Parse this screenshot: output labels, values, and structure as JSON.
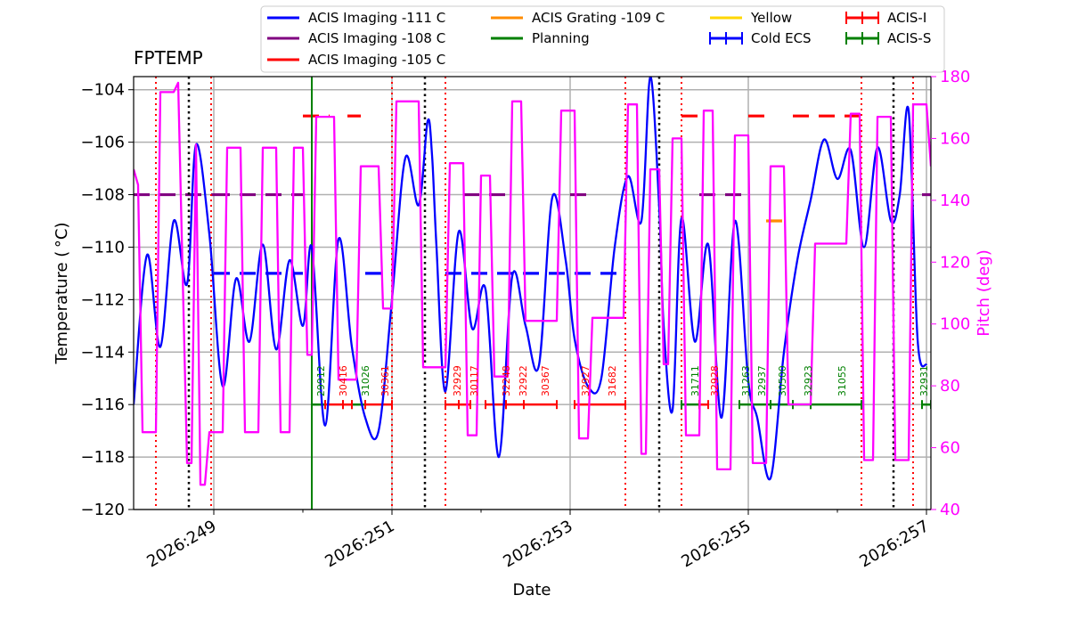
{
  "chart_data": {
    "type": "line",
    "title": "FPTEMP",
    "xlabel": "Date",
    "ylabel": "Temperature ($^\\circ$C)",
    "ylabel_display": "Temperature ( °C)",
    "y2label": "Pitch (deg)",
    "xlim": [
      248.1,
      257.05
    ],
    "ylim": [
      -120,
      -103.5
    ],
    "y2lim": [
      40,
      180
    ],
    "x_ticks": [
      249,
      251,
      253,
      255,
      257
    ],
    "x_tick_labels": [
      "2026:249",
      "2026:251",
      "2026:253",
      "2026:255",
      "2026:257"
    ],
    "y_ticks": [
      -120,
      -118,
      -116,
      -114,
      -112,
      -110,
      -108,
      -106,
      -104
    ],
    "y_tick_labels": [
      "−120",
      "−118",
      "−116",
      "−114",
      "−112",
      "−110",
      "−108",
      "−106",
      "−104"
    ],
    "y2_ticks": [
      40,
      60,
      80,
      100,
      120,
      140,
      160,
      180
    ],
    "y2_tick_labels": [
      "40",
      "60",
      "80",
      "100",
      "120",
      "140",
      "160",
      "180"
    ],
    "grid": true,
    "legend_position": "top",
    "legend": [
      {
        "label": "ACIS Imaging -111 C",
        "color": "#0000ff",
        "kind": "line"
      },
      {
        "label": "ACIS Imaging -108 C",
        "color": "#800080",
        "kind": "line"
      },
      {
        "label": "ACIS Imaging -105 C",
        "color": "#ff0000",
        "kind": "line"
      },
      {
        "label": "ACIS Grating -109 C",
        "color": "#ff8c00",
        "kind": "line"
      },
      {
        "label": "Planning",
        "color": "#008000",
        "kind": "line"
      },
      {
        "label": "Yellow",
        "color": "#ffd700",
        "kind": "line"
      },
      {
        "label": "Cold ECS",
        "color": "#0000ff",
        "kind": "errbar"
      },
      {
        "label": "ACIS-I",
        "color": "#ff0000",
        "kind": "errbar"
      },
      {
        "label": "ACIS-S",
        "color": "#008000",
        "kind": "errbar"
      }
    ],
    "colors": {
      "temperature": "#0000ff",
      "pitch": "#ff00ff",
      "limit_111": "#0000ff",
      "limit_108": "#800080",
      "limit_105": "#ff0000",
      "limit_109": "#ff8c00",
      "planning": "#008000",
      "acis_i": "#ff0000",
      "acis_s": "#008000",
      "dotted_red": "#ff0000",
      "dotted_black": "#000000",
      "grid": "#b0b0b0"
    },
    "series": [
      {
        "name": "FPTEMP",
        "color": "#0000ff",
        "x": [
          248.1,
          248.25,
          248.4,
          248.55,
          248.7,
          248.8,
          248.95,
          249.1,
          249.25,
          249.4,
          249.55,
          249.7,
          249.85,
          250.0,
          250.1,
          250.25,
          250.4,
          250.55,
          250.7,
          250.85,
          251.0,
          251.15,
          251.3,
          251.4,
          251.45,
          251.5,
          251.6,
          251.75,
          251.9,
          252.05,
          252.2,
          252.35,
          252.5,
          252.65,
          252.8,
          252.95,
          253.05,
          253.2,
          253.35,
          253.5,
          253.65,
          253.8,
          253.9,
          254.0,
          254.05,
          254.15,
          254.25,
          254.4,
          254.55,
          254.7,
          254.85,
          255.0,
          255.1,
          255.25,
          255.4,
          255.55,
          255.7,
          255.85,
          256.0,
          256.15,
          256.3,
          256.45,
          256.6,
          256.7,
          256.8,
          256.9,
          257.0
        ],
        "y": [
          -116.0,
          -110.3,
          -113.8,
          -109.0,
          -111.4,
          -106.1,
          -109.5,
          -115.3,
          -111.2,
          -113.6,
          -109.9,
          -113.9,
          -110.5,
          -113.0,
          -110.0,
          -116.8,
          -109.7,
          -113.8,
          -116.5,
          -117.0,
          -112.0,
          -106.6,
          -108.4,
          -105.2,
          -106.5,
          -110.0,
          -115.5,
          -109.4,
          -113.1,
          -111.6,
          -118.0,
          -111.1,
          -113.0,
          -114.5,
          -108.1,
          -110.5,
          -113.5,
          -115.3,
          -115.0,
          -110.0,
          -107.3,
          -109.0,
          -103.5,
          -108.5,
          -113.0,
          -116.2,
          -108.9,
          -113.6,
          -109.9,
          -116.5,
          -109.0,
          -115.1,
          -116.5,
          -118.8,
          -114.0,
          -110.5,
          -108.2,
          -105.9,
          -107.4,
          -106.3,
          -110.0,
          -106.2,
          -109.0,
          -108.0,
          -104.8,
          -113.5,
          -114.5
        ]
      },
      {
        "name": "Pitch",
        "color": "#ff00ff",
        "axis": "right",
        "x": [
          248.1,
          248.15,
          248.2,
          248.35,
          248.4,
          248.55,
          248.6,
          248.7,
          248.75,
          248.8,
          248.85,
          248.9,
          248.95,
          249.1,
          249.15,
          249.3,
          249.35,
          249.5,
          249.55,
          249.7,
          249.75,
          249.85,
          249.9,
          250.0,
          250.05,
          250.1,
          250.15,
          250.35,
          250.4,
          250.6,
          250.65,
          250.85,
          250.9,
          251.0,
          251.05,
          251.3,
          251.35,
          251.6,
          251.65,
          251.8,
          251.85,
          251.95,
          252.0,
          252.1,
          252.15,
          252.3,
          252.35,
          252.45,
          252.5,
          252.85,
          252.9,
          253.05,
          253.1,
          253.2,
          253.25,
          253.6,
          253.65,
          253.75,
          253.8,
          253.85,
          253.9,
          254.0,
          254.05,
          254.1,
          254.15,
          254.25,
          254.3,
          254.45,
          254.5,
          254.6,
          254.65,
          254.8,
          254.85,
          255.0,
          255.05,
          255.2,
          255.25,
          255.4,
          255.45,
          255.5,
          255.55,
          255.7,
          255.75,
          256.1,
          256.15,
          256.25,
          256.3,
          256.4,
          256.45,
          256.6,
          256.65,
          256.8,
          256.85,
          257.0,
          257.05
        ],
        "y": [
          150,
          145,
          65,
          65,
          175,
          175,
          178,
          55,
          55,
          158,
          48,
          48,
          65,
          65,
          157,
          157,
          65,
          65,
          157,
          157,
          65,
          65,
          157,
          157,
          90,
          90,
          167,
          167,
          82,
          82,
          151,
          151,
          105,
          105,
          172,
          172,
          86,
          86,
          152,
          152,
          64,
          64,
          148,
          148,
          83,
          83,
          172,
          172,
          101,
          101,
          169,
          169,
          63,
          63,
          102,
          102,
          171,
          171,
          58,
          58,
          150,
          150,
          87,
          87,
          160,
          160,
          64,
          64,
          169,
          169,
          53,
          53,
          161,
          161,
          55,
          55,
          151,
          151,
          74,
          74,
          74,
          74,
          126,
          126,
          168,
          168,
          56,
          56,
          167,
          167,
          56,
          56,
          171,
          171,
          151
        ]
      }
    ],
    "limits": [
      {
        "name": "ACIS Imaging -111 C",
        "value": -111,
        "color": "#0000ff",
        "segments": [
          [
            249.0,
            250.0
          ],
          [
            250.7,
            251.0
          ],
          [
            251.6,
            253.6
          ]
        ]
      },
      {
        "name": "ACIS Imaging -108 C",
        "value": -108,
        "color": "#800080",
        "segments": [
          [
            248.1,
            249.0
          ],
          [
            249.0,
            250.0
          ],
          [
            251.8,
            252.3
          ],
          [
            253.0,
            253.2
          ],
          [
            254.45,
            255.0
          ],
          [
            256.95,
            257.05
          ]
        ]
      },
      {
        "name": "ACIS Imaging -105 C",
        "value": -105,
        "color": "#ff0000",
        "segments": [
          [
            250.0,
            250.3
          ],
          [
            250.5,
            250.65
          ],
          [
            254.25,
            254.45
          ],
          [
            255.0,
            255.2
          ],
          [
            255.5,
            256.3
          ]
        ]
      },
      {
        "name": "ACIS Grating -109 C",
        "value": -109,
        "color": "#ff8c00",
        "segments": [
          [
            255.2,
            255.4
          ]
        ]
      }
    ],
    "planning_vline": 250.1,
    "dotted_red_lines": [
      248.35,
      248.97,
      251.0,
      251.6,
      253.62,
      254.25,
      256.27,
      256.85
    ],
    "dotted_black_lines": [
      248.72,
      251.37,
      254.0,
      256.63
    ],
    "obsids": [
      {
        "label": "29912",
        "x": 250.2,
        "inst": "ACIS-S"
      },
      {
        "label": "30416",
        "x": 250.45,
        "inst": "ACIS-I"
      },
      {
        "label": "31026",
        "x": 250.7,
        "inst": "ACIS-S"
      },
      {
        "label": "30361",
        "x": 250.92,
        "inst": "ACIS-I"
      },
      {
        "label": "32929",
        "x": 251.73,
        "inst": "ACIS-I"
      },
      {
        "label": "30117",
        "x": 251.92,
        "inst": "ACIS-I"
      },
      {
        "label": "32248",
        "x": 252.28,
        "inst": "ACIS-I"
      },
      {
        "label": "32922",
        "x": 252.47,
        "inst": "ACIS-I"
      },
      {
        "label": "30367",
        "x": 252.72,
        "inst": "ACIS-I"
      },
      {
        "label": "32927",
        "x": 253.17,
        "inst": "ACIS-I"
      },
      {
        "label": "31682",
        "x": 253.47,
        "inst": "ACIS-I"
      },
      {
        "label": "31711",
        "x": 254.4,
        "inst": "ACIS-S"
      },
      {
        "label": "32928",
        "x": 254.62,
        "inst": "ACIS-I"
      },
      {
        "label": "31263",
        "x": 254.97,
        "inst": "ACIS-S"
      },
      {
        "label": "32937",
        "x": 255.15,
        "inst": "ACIS-S"
      },
      {
        "label": "30500",
        "x": 255.38,
        "inst": "ACIS-S"
      },
      {
        "label": "32923",
        "x": 255.67,
        "inst": "ACIS-S"
      },
      {
        "label": "31055",
        "x": 256.05,
        "inst": "ACIS-S"
      },
      {
        "label": "32931",
        "x": 256.97,
        "inst": "ACIS-S"
      }
    ],
    "acis_i_bars": [
      [
        250.25,
        250.45
      ],
      [
        250.45,
        250.55
      ],
      [
        250.7,
        251.0
      ],
      [
        251.6,
        251.75
      ],
      [
        251.75,
        251.88
      ],
      [
        252.05,
        252.28
      ],
      [
        252.28,
        252.48
      ],
      [
        252.48,
        252.85
      ],
      [
        253.05,
        253.62
      ],
      [
        254.45,
        254.55
      ]
    ],
    "acis_s_bars": [
      [
        250.1,
        250.25
      ],
      [
        250.55,
        250.7
      ],
      [
        254.25,
        254.45
      ],
      [
        254.9,
        255.25
      ],
      [
        255.25,
        255.5
      ],
      [
        255.5,
        255.7
      ],
      [
        255.7,
        256.27
      ],
      [
        256.95,
        257.05
      ]
    ],
    "bar_level": -116
  }
}
